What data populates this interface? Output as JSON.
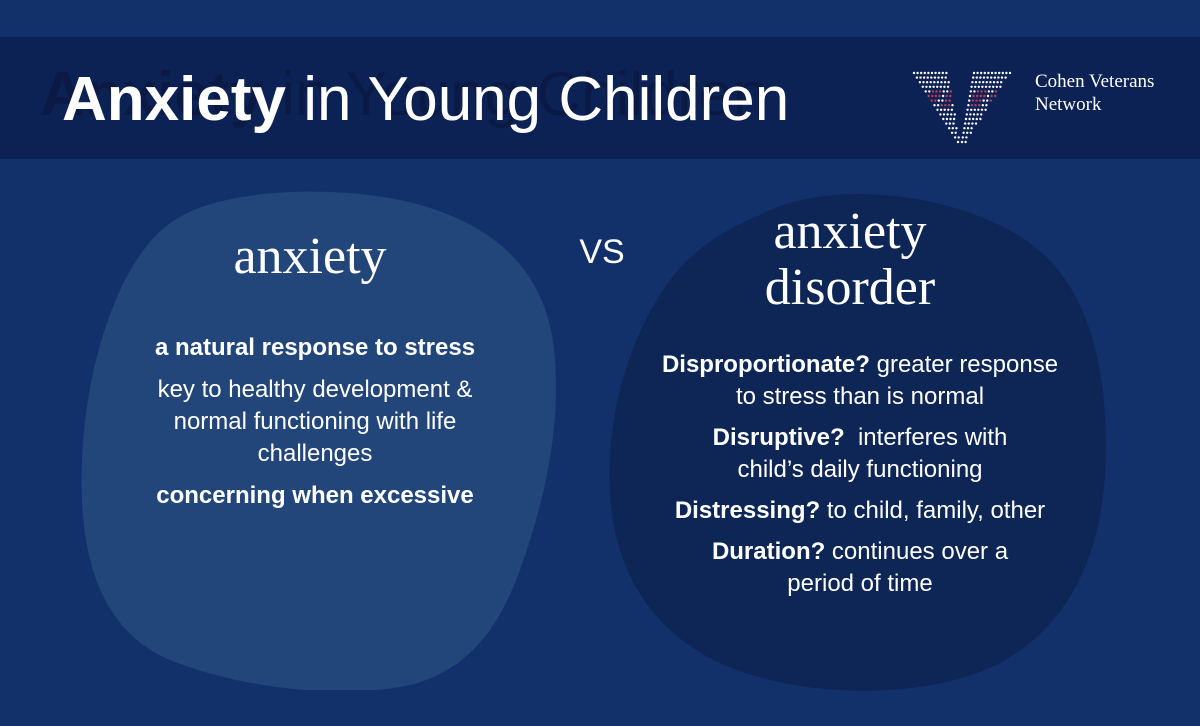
{
  "header": {
    "title_bold": "Anxiety",
    "title_rest": " in Young Children",
    "logo": {
      "line1": "Cohen Veterans",
      "line2": "Network",
      "icon": "v-dots-logo-icon",
      "colors": {
        "red": "#c23b5a",
        "white": "#ffffff",
        "navy": "#0d2254"
      }
    }
  },
  "left": {
    "heading": "anxiety",
    "items": [
      {
        "text": "a natural response to stress",
        "bold": true
      },
      {
        "text": "key to healthy development & normal functioning with life challenges",
        "bold": false
      },
      {
        "text": "concerning when excessive",
        "bold": true
      }
    ]
  },
  "vs": "VS",
  "right": {
    "heading_line1": "anxiety",
    "heading_line2": "disorder",
    "items": [
      {
        "label": "Disproportionate?",
        "text": " greater response to stress than is normal"
      },
      {
        "label": "Disruptive?",
        "text": "  interferes with child’s daily functioning"
      },
      {
        "label": "Distressing?",
        "text": " to child, family, other"
      },
      {
        "label": "Duration?",
        "text": " continues over a period of time"
      }
    ]
  },
  "colors": {
    "background": "#12316b",
    "header_band": "#0d2254",
    "left_blob": "#22467a",
    "right_blob": "#0d2656"
  }
}
